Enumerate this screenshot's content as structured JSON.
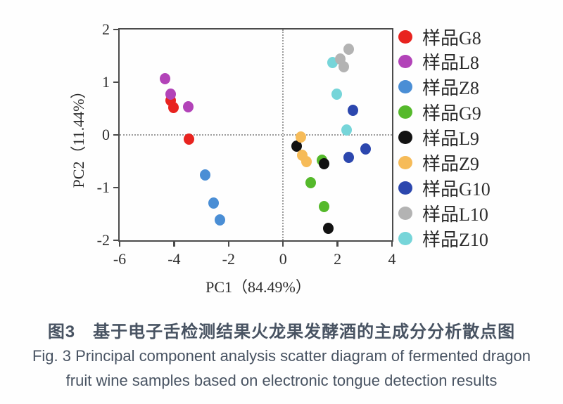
{
  "caption": {
    "zh": "图3　基于电子舌检测结果火龙果发酵酒的主成分分析散点图",
    "en_line1": "Fig. 3 Principal component analysis scatter diagram of fermented dragon",
    "en_line2": "fruit wine samples based on electronic tongue detection results"
  },
  "chart_data": {
    "type": "scatter",
    "title": "",
    "xlabel": "PC1（84.49%）",
    "ylabel": "PC2（11.44%）",
    "xlim": [
      -6,
      4
    ],
    "ylim": [
      -2,
      2
    ],
    "x_ticks": [
      -6,
      -4,
      -2,
      0,
      2,
      4
    ],
    "y_ticks": [
      2,
      1,
      0,
      -1,
      -2
    ],
    "grid": false,
    "zero_reference_lines": "dotted vertical at x=0 and horizontal at y=0",
    "legend_position": "right",
    "series": [
      {
        "name": "样品G8",
        "color": "#e8231f",
        "points": [
          [
            -4.12,
            0.65
          ],
          [
            -4.02,
            0.52
          ],
          [
            -3.45,
            -0.08
          ]
        ]
      },
      {
        "name": "样品L8",
        "color": "#b243b8",
        "points": [
          [
            -4.33,
            1.07
          ],
          [
            -4.12,
            0.77
          ],
          [
            -3.47,
            0.53
          ]
        ]
      },
      {
        "name": "样品Z8",
        "color": "#4a8ed5",
        "points": [
          [
            -2.85,
            -0.76
          ],
          [
            -2.54,
            -1.29
          ],
          [
            -2.31,
            -1.61
          ]
        ]
      },
      {
        "name": "样品G9",
        "color": "#55b92b",
        "points": [
          [
            1.42,
            -0.48
          ],
          [
            1.01,
            -0.91
          ],
          [
            1.5,
            -1.36
          ]
        ]
      },
      {
        "name": "样品L9",
        "color": "#121212",
        "points": [
          [
            0.49,
            -0.21
          ],
          [
            1.5,
            -0.55
          ],
          [
            1.66,
            -1.77
          ]
        ]
      },
      {
        "name": "样品Z9",
        "color": "#f6bb58",
        "points": [
          [
            0.65,
            -0.04
          ],
          [
            0.7,
            -0.39
          ],
          [
            0.85,
            -0.51
          ]
        ]
      },
      {
        "name": "样品G10",
        "color": "#2c47ae",
        "points": [
          [
            2.56,
            0.47
          ],
          [
            3.03,
            -0.27
          ],
          [
            2.41,
            -0.43
          ]
        ]
      },
      {
        "name": "样品L10",
        "color": "#b3b3b3",
        "points": [
          [
            2.41,
            1.63
          ],
          [
            2.1,
            1.44
          ],
          [
            2.23,
            1.29
          ]
        ]
      },
      {
        "name": "样品Z10",
        "color": "#76d5d9",
        "points": [
          [
            1.81,
            1.37
          ],
          [
            1.97,
            0.77
          ],
          [
            2.33,
            0.09
          ]
        ]
      }
    ]
  }
}
